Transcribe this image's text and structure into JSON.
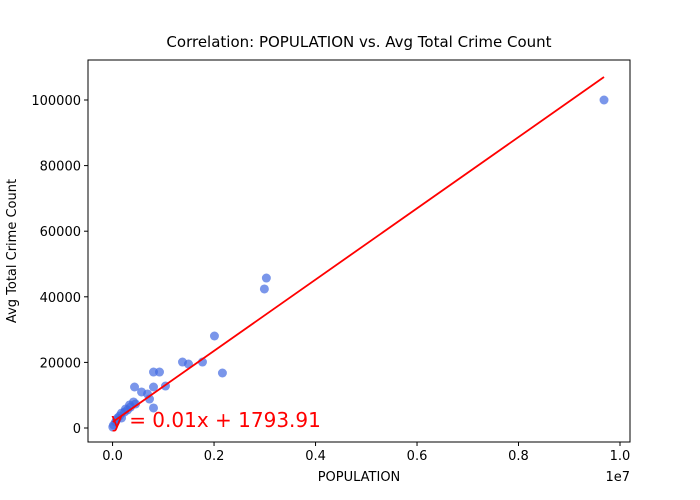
{
  "chart_data": {
    "type": "scatter",
    "title": "Correlation: POPULATION vs. Avg Total Crime Count",
    "xlabel": "POPULATION",
    "ylabel": "Avg Total Crime Count",
    "x_offset_label": "1e7",
    "annotation": "y = 0.01x + 1793.91",
    "annotation_color": "#ff0000",
    "xlim": [
      -484000,
      10197000
    ],
    "ylim": [
      -4268,
      112195
    ],
    "xticks": [
      {
        "value": 0,
        "label": "0.0"
      },
      {
        "value": 2000000,
        "label": "0.2"
      },
      {
        "value": 4000000,
        "label": "0.4"
      },
      {
        "value": 6000000,
        "label": "0.6"
      },
      {
        "value": 8000000,
        "label": "0.8"
      },
      {
        "value": 10000000,
        "label": "1.0"
      }
    ],
    "yticks": [
      0,
      20000,
      40000,
      60000,
      80000,
      100000
    ],
    "series": [
      {
        "color": "#4169e1",
        "x": [
          9685000,
          3031000,
          2992000,
          2008000,
          1378000,
          1496000,
          1772000,
          2165000,
          807000,
          925000,
          433000,
          807000,
          1043000,
          571000,
          689000,
          728000,
          807000,
          413000,
          453000,
          354000,
          295000,
          236000,
          177000,
          138000,
          98000,
          59000,
          20000,
          5000,
          256000,
          335000,
          177000,
          79000
        ],
        "values": [
          100000,
          45730,
          42380,
          28050,
          20120,
          19510,
          20120,
          16770,
          17070,
          17070,
          12500,
          12500,
          12800,
          10980,
          10370,
          8840,
          6100,
          7930,
          7320,
          6400,
          5490,
          4880,
          4570,
          3660,
          3050,
          1830,
          915,
          300,
          5790,
          7010,
          3050,
          2440
        ]
      },
      {
        "type": "line",
        "color": "#ff0000",
        "x": [
          5000,
          9685000
        ],
        "values": [
          1850,
          107000
        ]
      }
    ]
  }
}
